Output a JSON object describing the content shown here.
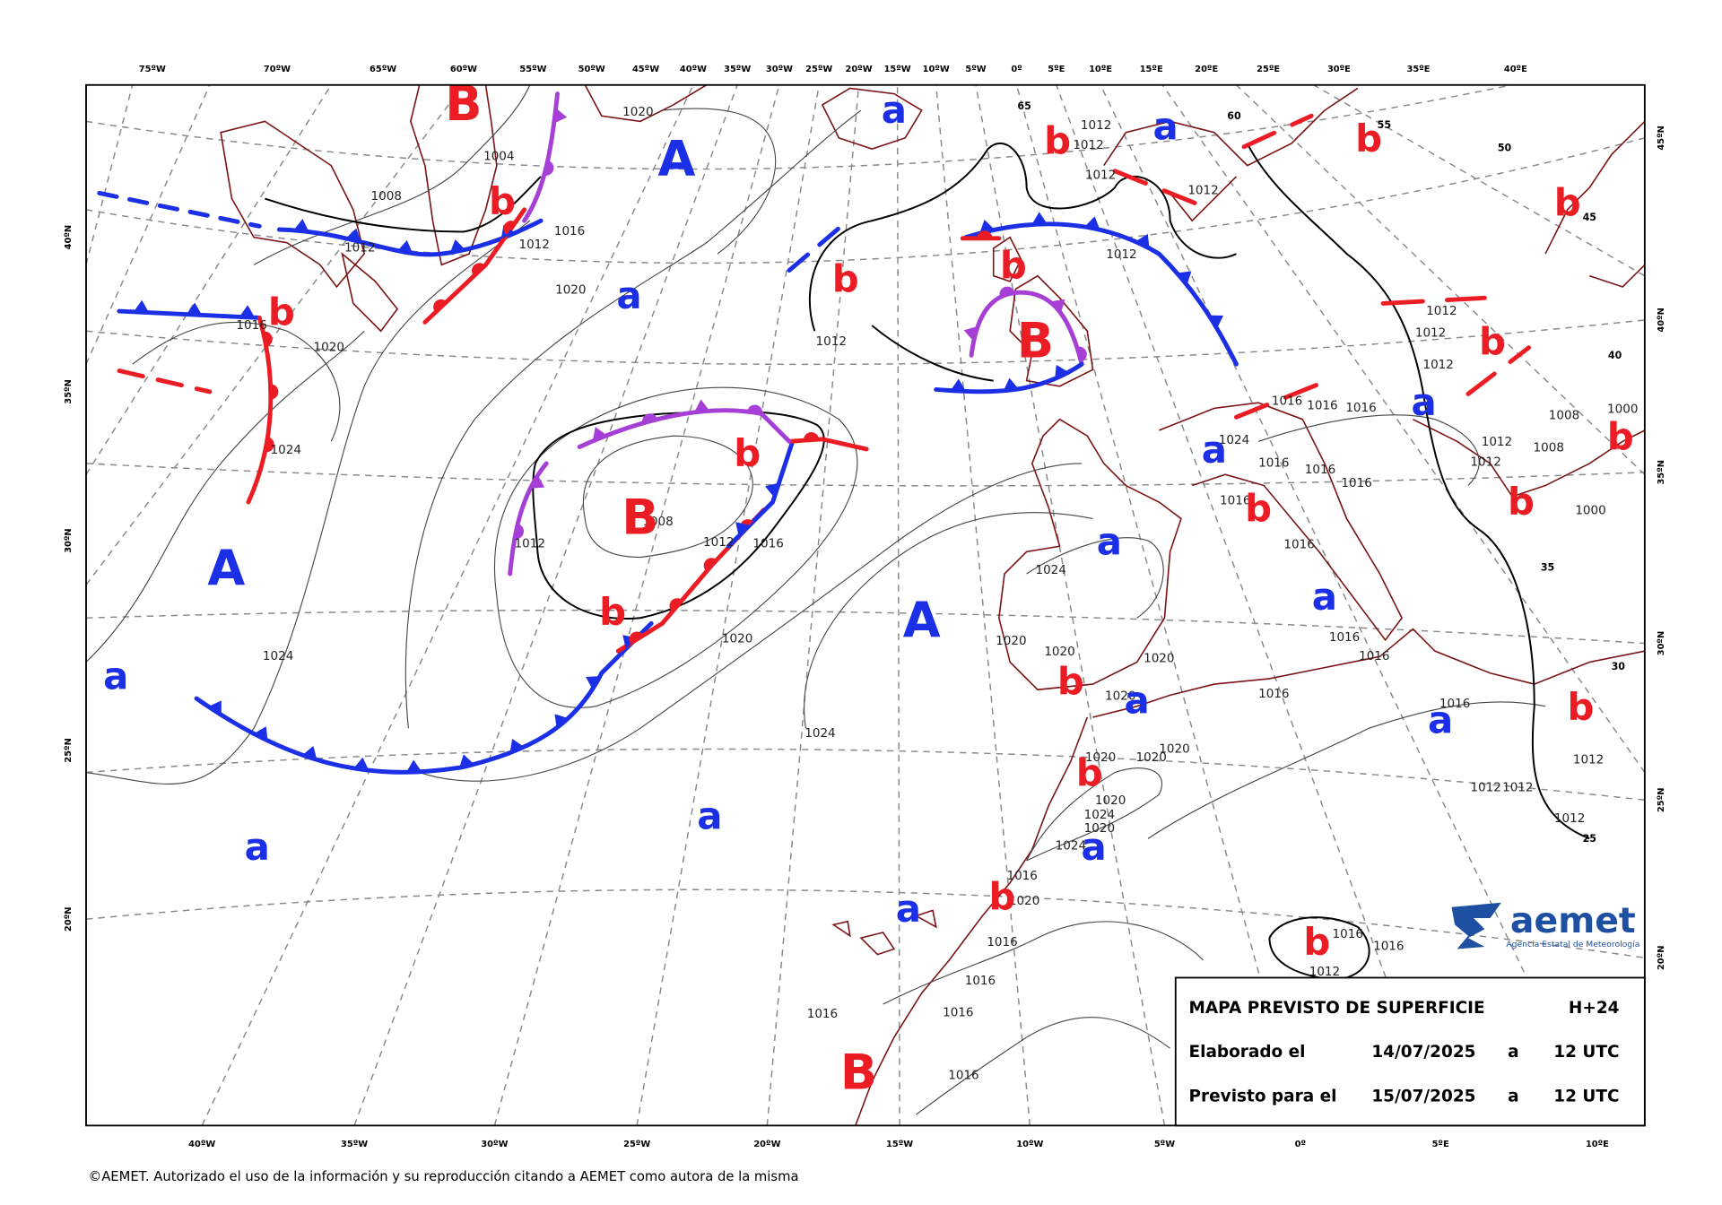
{
  "map": {
    "top_longitudes": [
      "75ºW",
      "70ºW",
      "65ºW",
      "60ºW",
      "55ºW",
      "50ºW",
      "45ºW",
      "40ºW",
      "35ºW",
      "30ºW",
      "25ºW",
      "20ºW",
      "15ºW",
      "10ºW",
      "5ºW",
      "0º",
      "5ºE",
      "10ºE",
      "15ºE",
      "20ºE",
      "25ºE",
      "30ºE",
      "35ºE",
      "40ºE"
    ],
    "bottom_longitudes": [
      "40ºW",
      "35ºW",
      "30ºW",
      "25ºW",
      "20ºW",
      "15ºW",
      "10ºW",
      "5ºW",
      "0º",
      "5ºE",
      "10ºE"
    ],
    "left_latitudes": [
      "40ºN",
      "35ºN",
      "30ºN",
      "25ºN",
      "20ºN"
    ],
    "right_latitudes": [
      "45ºN",
      "40ºN",
      "35ºN",
      "30ºN",
      "25ºN",
      "20ºN"
    ],
    "pressure_centers": [
      "B",
      "A",
      "a",
      "b",
      "a",
      "b",
      "b",
      "b",
      "b",
      "a",
      "b",
      "B",
      "b",
      "b",
      "a",
      "b",
      "a",
      "b",
      "B",
      "b",
      "b",
      "a",
      "A",
      "b",
      "a",
      "A",
      "a",
      "b",
      "a",
      "a",
      "b",
      "b",
      "a",
      "a",
      "a",
      "a",
      "b",
      "b",
      "B"
    ],
    "isobar_labels": [
      "1020",
      "1004",
      "1008",
      "1012",
      "1016",
      "1020",
      "1012",
      "1016",
      "1020",
      "1024",
      "1024",
      "1012",
      "1008",
      "1012",
      "1016",
      "1020",
      "1024",
      "1012",
      "1012",
      "1012",
      "1012",
      "1012",
      "1012",
      "1024",
      "1020",
      "1020",
      "1020",
      "1020",
      "1020",
      "1020",
      "1020",
      "1020",
      "1024",
      "1020",
      "1024",
      "1016",
      "1020",
      "1016",
      "1016",
      "1016",
      "1016",
      "1016",
      "1012",
      "1016",
      "1016",
      "1016",
      "1016",
      "1016",
      "1016",
      "1012",
      "1012",
      "1012",
      "1012",
      "1012",
      "1012",
      "1012",
      "1016",
      "1016",
      "1016",
      "1016",
      "1016",
      "1016",
      "1016",
      "1016",
      "1024",
      "1012",
      "1012",
      "1008",
      "1008",
      "1000",
      "1000"
    ],
    "contour_labels": [
      "65",
      "60",
      "55",
      "50",
      "45",
      "40",
      "35",
      "30",
      "25"
    ],
    "info_box": {
      "title": "MAPA PREVISTO DE SUPERFICIE",
      "forecast_step": "H+24",
      "rows": [
        [
          "Elaborado el",
          "14/07/2025",
          "a",
          "12 UTC"
        ],
        [
          "Previsto para el",
          "15/07/2025",
          "a",
          "12 UTC"
        ]
      ]
    },
    "logo": {
      "name": "aemet",
      "subtitle": "Agencia Estatal de Meteorología"
    },
    "copyright": "©AEMET. Autorizado el uso de la información y su reproducción citando a AEMET como autora de la misma"
  }
}
